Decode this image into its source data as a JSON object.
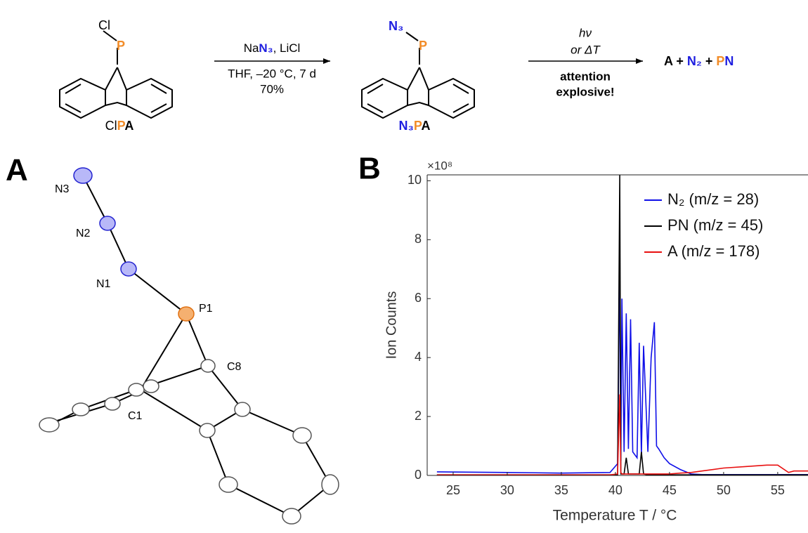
{
  "scheme": {
    "reactant": {
      "atom_cl": "Cl",
      "atom_p": "P",
      "label": [
        "Cl",
        "P",
        "A"
      ]
    },
    "arrow1": {
      "line1": [
        "Na",
        "N₃",
        ", LiCl"
      ],
      "line2": "THF, –20 °C, 7 d",
      "line3": "70%"
    },
    "intermediate": {
      "atom_n3": "N₃",
      "atom_p": "P",
      "label": [
        "N₃",
        "P",
        "A"
      ]
    },
    "arrow2": {
      "line1": "hν",
      "line2": "or ΔT",
      "line3": "attention",
      "line4": "explosive!"
    },
    "products": [
      "A + ",
      "N₂",
      " + ",
      "P",
      "N"
    ]
  },
  "panel_a": {
    "label": "A",
    "atoms": [
      "N3",
      "N2",
      "N1",
      "P1",
      "C8",
      "C1"
    ]
  },
  "panel_b": {
    "label": "B"
  },
  "chart_data": {
    "type": "line",
    "multiplier": "×10⁸",
    "ylabel": "Ion Counts",
    "xlabel": "Temperature T / °C",
    "x": [
      23.5,
      30,
      35,
      39.5,
      40.2,
      40.4,
      40.5,
      40.6,
      40.8,
      41,
      41.2,
      41.4,
      41.6,
      42,
      42.2,
      42.4,
      42.6,
      43,
      43.3,
      43.6,
      43.8,
      44,
      44.5,
      45,
      46,
      47,
      48,
      50,
      52,
      54,
      55,
      56,
      56.5,
      57.8
    ],
    "series": [
      {
        "name": "N₂ (m/z = 28)",
        "color": "#1010e8",
        "values": [
          0.12,
          0.1,
          0.08,
          0.1,
          0.4,
          7.3,
          0.5,
          6.0,
          0.8,
          5.5,
          0.9,
          5.3,
          0.8,
          0.6,
          4.5,
          0.7,
          4.4,
          0.8,
          4.0,
          5.2,
          1.0,
          0.9,
          0.6,
          0.4,
          0.2,
          0.05,
          0.03,
          0.03,
          0.03,
          0.03,
          0.03,
          0.03,
          0.03,
          0.03
        ]
      },
      {
        "name": "PN (m/z = 45)",
        "color": "#000000",
        "values": [
          0.02,
          0.02,
          0.02,
          0.02,
          0.02,
          10.2,
          0.05,
          0.05,
          0.05,
          0.6,
          0.05,
          0.05,
          0.05,
          0.05,
          0.05,
          0.8,
          0.05,
          0.02,
          0.02,
          0.02,
          0.02,
          0.02,
          0.02,
          0.02,
          0.02,
          0.02,
          0.02,
          0.02,
          0.02,
          0.02,
          0.02,
          0.02,
          0.02,
          0.02
        ]
      },
      {
        "name": "A (m/z = 178)",
        "color": "#e81010",
        "values": [
          0.02,
          0.02,
          0.02,
          0.02,
          0.05,
          2.75,
          0.1,
          0.05,
          0.05,
          0.05,
          0.05,
          0.05,
          0.05,
          0.05,
          0.05,
          0.05,
          0.05,
          0.05,
          0.05,
          0.05,
          0.05,
          0.05,
          0.05,
          0.05,
          0.08,
          0.1,
          0.15,
          0.25,
          0.3,
          0.35,
          0.35,
          0.1,
          0.15,
          0.15
        ]
      }
    ],
    "xlim": [
      22.6,
      57.8
    ],
    "ylim": [
      0,
      10.2
    ],
    "xticks": [
      25,
      30,
      35,
      40,
      45,
      50,
      55
    ],
    "yticks": [
      0,
      2,
      4,
      6,
      8,
      10
    ]
  }
}
